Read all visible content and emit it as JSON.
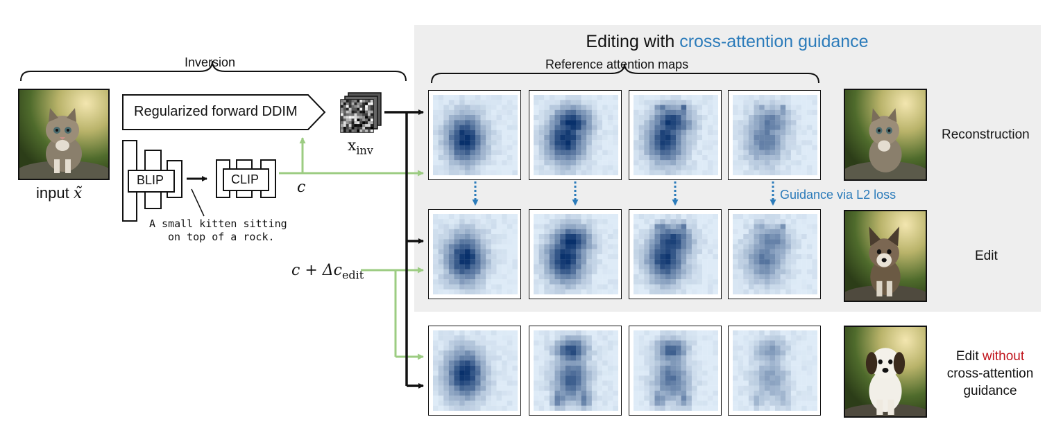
{
  "title": {
    "prefix": "Editing with ",
    "highlight": "cross-attention guidance",
    "highlight_color": "#2b7bba"
  },
  "inversion": {
    "label": "Inversion",
    "forward_box_label": "Regularized forward DDIM",
    "blip_label": "BLIP",
    "clip_label": "CLIP",
    "caption_line1": "A small kitten sitting",
    "caption_line2": "on top of a rock.",
    "input_label": "input",
    "input_symbol": "x̃",
    "xinv_base": "x",
    "xinv_sub": "inv",
    "c_label": "c",
    "c_edit_label": "c + Δc",
    "c_edit_sub": "edit"
  },
  "reference_label": "Reference attention maps",
  "guidance_label": "Guidance via L2 loss",
  "rows": [
    {
      "label": "Reconstruction",
      "image": "kitten-photo"
    },
    {
      "label": "Edit",
      "image": "puppy-photo-guided"
    },
    {
      "label_line1_prefix": "Edit ",
      "label_line1_highlight": "without",
      "label_line2": "cross-attention",
      "label_line3": "guidance",
      "highlight_color": "#c0141c",
      "image": "puppy-photo-unguided"
    }
  ],
  "colors": {
    "panel_bg": "#eeeeee",
    "green_arrow": "#9ccc82",
    "blue_arrow": "#2b7bba",
    "attention_dark": "#08306b",
    "attention_light": "#deebf7"
  }
}
